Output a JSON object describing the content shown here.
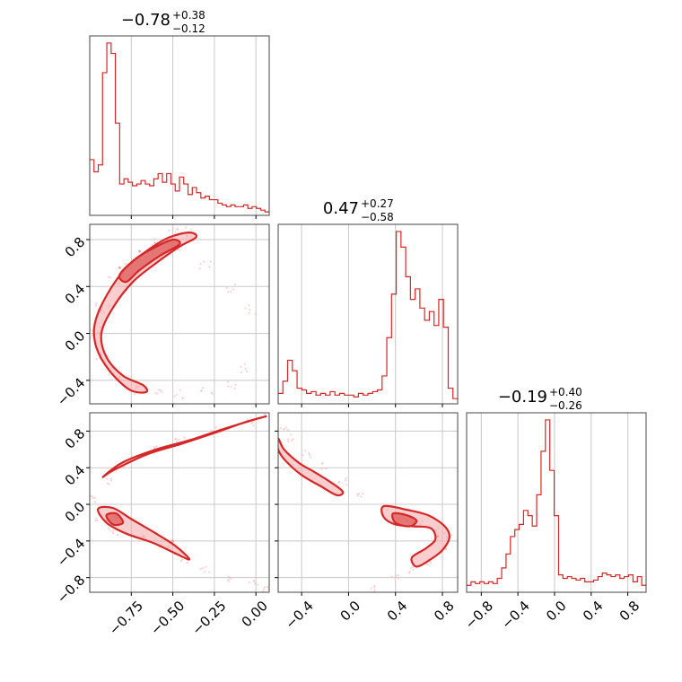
{
  "chart_data": {
    "type": "corner",
    "color": "#d62728",
    "grid": true,
    "titles": [
      {
        "param": 0,
        "median": "−0.78",
        "plus": "+0.38",
        "minus": "−0.12"
      },
      {
        "param": 1,
        "median": "0.47",
        "plus": "+0.27",
        "minus": "−0.58"
      },
      {
        "param": 2,
        "median": "−0.19",
        "plus": "+0.40",
        "minus": "−0.26"
      }
    ],
    "ranges": [
      [
        -1.0,
        0.08
      ],
      [
        -0.6,
        0.93
      ],
      [
        -0.96,
        1.0
      ]
    ],
    "ticks": {
      "x0": [
        {
          "v": -0.75,
          "label": "−0.75"
        },
        {
          "v": -0.5,
          "label": "−0.50"
        },
        {
          "v": -0.25,
          "label": "−0.25"
        },
        {
          "v": 0.0,
          "label": "0.00"
        }
      ],
      "x1": [
        {
          "v": -0.4,
          "label": "−0.4"
        },
        {
          "v": 0.0,
          "label": "0.0"
        },
        {
          "v": 0.4,
          "label": "0.4"
        },
        {
          "v": 0.8,
          "label": "0.8"
        }
      ],
      "x2": [
        {
          "v": -0.8,
          "label": "−0.8"
        },
        {
          "v": -0.4,
          "label": "−0.4"
        },
        {
          "v": 0.0,
          "label": "0.0"
        },
        {
          "v": 0.4,
          "label": "0.4"
        },
        {
          "v": 0.8,
          "label": "0.8"
        }
      ],
      "y1": [
        {
          "v": 0.8,
          "label": "0.8"
        },
        {
          "v": 0.4,
          "label": "0.4"
        },
        {
          "v": 0.0,
          "label": "0.0"
        },
        {
          "v": -0.4,
          "label": "−0.4"
        }
      ],
      "y2": [
        {
          "v": 0.8,
          "label": "0.8"
        },
        {
          "v": 0.4,
          "label": "0.4"
        },
        {
          "v": 0.0,
          "label": "0.0"
        },
        {
          "v": -0.4,
          "label": "−0.4"
        },
        {
          "v": -0.8,
          "label": "−0.8"
        }
      ]
    },
    "hist": [
      {
        "param": 0,
        "ymax": 1.0,
        "values": [
          0.32,
          0.25,
          0.29,
          0.82,
          0.99,
          0.93,
          0.53,
          0.18,
          0.21,
          0.19,
          0.17,
          0.18,
          0.2,
          0.18,
          0.17,
          0.21,
          0.24,
          0.19,
          0.24,
          0.18,
          0.14,
          0.22,
          0.18,
          0.12,
          0.16,
          0.13,
          0.1,
          0.11,
          0.09,
          0.09,
          0.07,
          0.06,
          0.05,
          0.06,
          0.05,
          0.05,
          0.06,
          0.04,
          0.05,
          0.04,
          0.03,
          0.02
        ]
      },
      {
        "param": 1,
        "ymax": 1.0,
        "values": [
          0.06,
          0.13,
          0.25,
          0.19,
          0.09,
          0.08,
          0.06,
          0.07,
          0.05,
          0.06,
          0.05,
          0.07,
          0.05,
          0.06,
          0.05,
          0.05,
          0.04,
          0.06,
          0.05,
          0.06,
          0.07,
          0.08,
          0.16,
          0.38,
          0.63,
          0.99,
          0.9,
          0.73,
          0.6,
          0.66,
          0.55,
          0.48,
          0.53,
          0.45,
          0.6,
          0.44,
          0.09,
          0.03
        ]
      },
      {
        "param": 2,
        "ymax": 1.0,
        "values": [
          0.04,
          0.06,
          0.05,
          0.06,
          0.05,
          0.06,
          0.05,
          0.08,
          0.14,
          0.22,
          0.32,
          0.36,
          0.39,
          0.47,
          0.44,
          0.38,
          0.56,
          0.81,
          0.99,
          0.7,
          0.44,
          0.1,
          0.08,
          0.09,
          0.08,
          0.07,
          0.08,
          0.06,
          0.06,
          0.07,
          0.09,
          0.11,
          0.1,
          0.09,
          0.1,
          0.08,
          0.09,
          0.1,
          0.06,
          0.09,
          0.04
        ]
      }
    ],
    "scatter": [
      {
        "xparam": 0,
        "yparam": 1,
        "outer": [
          [
            -0.97,
            0.02
          ],
          [
            -0.93,
            0.22
          ],
          [
            -0.85,
            0.45
          ],
          [
            -0.75,
            0.62
          ],
          [
            -0.6,
            0.78
          ],
          [
            -0.5,
            0.86
          ],
          [
            -0.4,
            0.87
          ],
          [
            -0.38,
            0.8
          ],
          [
            -0.5,
            0.74
          ],
          [
            -0.66,
            0.6
          ],
          [
            -0.8,
            0.44
          ],
          [
            -0.92,
            0.22
          ],
          [
            -0.96,
            0.0
          ],
          [
            -0.93,
            -0.2
          ],
          [
            -0.85,
            -0.38
          ],
          [
            -0.72,
            -0.48
          ],
          [
            -0.6,
            -0.5
          ],
          [
            -0.45,
            -0.52
          ],
          [
            -0.3,
            -0.5
          ],
          [
            -0.15,
            -0.44
          ],
          [
            -0.05,
            -0.3
          ],
          [
            -0.03,
            0.2
          ],
          [
            -0.15,
            0.38
          ],
          [
            -0.3,
            0.58
          ]
        ],
        "core": [
          [
            -0.82,
            0.56
          ],
          [
            -0.7,
            0.7
          ],
          [
            -0.6,
            0.76
          ],
          [
            -0.5,
            0.8
          ],
          [
            -0.62,
            0.68
          ],
          [
            -0.74,
            0.6
          ]
        ]
      },
      {
        "xparam": 0,
        "yparam": 2,
        "outer": [
          [
            -0.96,
            0.05
          ],
          [
            -0.9,
            0.25
          ],
          [
            -0.8,
            0.42
          ],
          [
            -0.62,
            0.6
          ],
          [
            -0.45,
            0.7
          ],
          [
            -0.25,
            0.82
          ],
          [
            -0.05,
            0.9
          ],
          [
            0.05,
            0.98
          ],
          [
            -0.95,
            -0.15
          ],
          [
            -0.85,
            -0.3
          ],
          [
            -0.7,
            -0.38
          ],
          [
            -0.55,
            -0.48
          ],
          [
            -0.42,
            -0.6
          ],
          [
            -0.3,
            -0.72
          ],
          [
            -0.15,
            -0.8
          ],
          [
            -0.02,
            -0.86
          ],
          [
            0.05,
            -0.92
          ]
        ],
        "core": [
          [
            -0.9,
            -0.18
          ],
          [
            -0.85,
            -0.12
          ],
          [
            -0.8,
            -0.2
          ],
          [
            -0.6,
            -0.32
          ],
          [
            -0.5,
            -0.4
          ]
        ]
      },
      {
        "xparam": 1,
        "yparam": 2,
        "outer": [
          [
            -0.55,
            0.8
          ],
          [
            -0.5,
            0.72
          ],
          [
            -0.35,
            0.55
          ],
          [
            -0.2,
            0.42
          ],
          [
            -0.05,
            0.25
          ],
          [
            0.1,
            0.1
          ],
          [
            0.3,
            -0.05
          ],
          [
            0.45,
            -0.12
          ],
          [
            0.6,
            -0.2
          ],
          [
            0.75,
            -0.28
          ],
          [
            0.85,
            -0.35
          ],
          [
            0.8,
            -0.5
          ],
          [
            0.7,
            -0.62
          ],
          [
            0.55,
            -0.72
          ],
          [
            0.4,
            -0.8
          ],
          [
            0.2,
            -0.92
          ]
        ],
        "core": [
          [
            0.42,
            -0.15
          ],
          [
            0.5,
            -0.18
          ],
          [
            0.56,
            -0.2
          ],
          [
            0.76,
            -0.35
          ]
        ]
      }
    ],
    "contours": [
      {
        "xparam": 0,
        "yparam": 1,
        "shape": "arc",
        "level": "outer",
        "pts": [
          [
            -0.97,
            0.08
          ],
          [
            -0.9,
            0.32
          ],
          [
            -0.78,
            0.56
          ],
          [
            -0.64,
            0.72
          ],
          [
            -0.52,
            0.82
          ],
          [
            -0.4,
            0.86
          ],
          [
            -0.36,
            0.82
          ],
          [
            -0.46,
            0.74
          ],
          [
            -0.6,
            0.6
          ],
          [
            -0.74,
            0.44
          ],
          [
            -0.86,
            0.22
          ],
          [
            -0.93,
            0.0
          ],
          [
            -0.9,
            -0.2
          ],
          [
            -0.8,
            -0.36
          ],
          [
            -0.68,
            -0.44
          ],
          [
            -0.66,
            -0.5
          ],
          [
            -0.76,
            -0.48
          ],
          [
            -0.88,
            -0.32
          ],
          [
            -0.96,
            -0.12
          ]
        ]
      },
      {
        "xparam": 0,
        "yparam": 1,
        "shape": "arc",
        "level": "inner",
        "pts": [
          [
            -0.82,
            0.5
          ],
          [
            -0.72,
            0.64
          ],
          [
            -0.6,
            0.74
          ],
          [
            -0.5,
            0.8
          ],
          [
            -0.46,
            0.76
          ],
          [
            -0.58,
            0.66
          ],
          [
            -0.7,
            0.54
          ],
          [
            -0.78,
            0.44
          ]
        ]
      },
      {
        "xparam": 0,
        "yparam": 2,
        "shape": "arc",
        "level": "outer",
        "pts": [
          [
            -0.95,
            -0.05
          ],
          [
            -0.9,
            -0.2
          ],
          [
            -0.78,
            -0.32
          ],
          [
            -0.62,
            -0.42
          ],
          [
            -0.48,
            -0.54
          ],
          [
            -0.4,
            -0.6
          ],
          [
            -0.48,
            -0.46
          ],
          [
            -0.6,
            -0.32
          ],
          [
            -0.75,
            -0.16
          ],
          [
            -0.86,
            -0.04
          ]
        ]
      },
      {
        "xparam": 0,
        "yparam": 2,
        "shape": "arc",
        "level": "inner",
        "pts": [
          [
            -0.9,
            -0.12
          ],
          [
            -0.86,
            -0.22
          ],
          [
            -0.8,
            -0.2
          ],
          [
            -0.84,
            -0.1
          ]
        ]
      },
      {
        "xparam": 0,
        "yparam": 2,
        "shape": "arc",
        "level": "outer",
        "pts": [
          [
            -0.92,
            0.3
          ],
          [
            -0.8,
            0.46
          ],
          [
            -0.6,
            0.6
          ],
          [
            -0.4,
            0.7
          ],
          [
            -0.2,
            0.82
          ],
          [
            -0.02,
            0.92
          ],
          [
            0.06,
            0.96
          ],
          [
            -0.06,
            0.9
          ],
          [
            -0.25,
            0.78
          ],
          [
            -0.45,
            0.66
          ],
          [
            -0.65,
            0.55
          ],
          [
            -0.85,
            0.38
          ]
        ]
      },
      {
        "xparam": 1,
        "yparam": 2,
        "shape": "arc",
        "level": "outer",
        "pts": [
          [
            0.3,
            -0.02
          ],
          [
            0.5,
            -0.06
          ],
          [
            0.68,
            -0.12
          ],
          [
            0.82,
            -0.24
          ],
          [
            0.86,
            -0.36
          ],
          [
            0.8,
            -0.5
          ],
          [
            0.7,
            -0.6
          ],
          [
            0.58,
            -0.68
          ],
          [
            0.54,
            -0.58
          ],
          [
            0.66,
            -0.48
          ],
          [
            0.74,
            -0.38
          ],
          [
            0.7,
            -0.26
          ],
          [
            0.55,
            -0.24
          ],
          [
            0.4,
            -0.22
          ],
          [
            0.3,
            -0.14
          ]
        ]
      },
      {
        "xparam": 1,
        "yparam": 2,
        "shape": "arc",
        "level": "inner",
        "pts": [
          [
            0.38,
            -0.1
          ],
          [
            0.5,
            -0.12
          ],
          [
            0.58,
            -0.18
          ],
          [
            0.52,
            -0.24
          ],
          [
            0.4,
            -0.2
          ]
        ]
      },
      {
        "xparam": 1,
        "yparam": 2,
        "shape": "arc",
        "level": "outer",
        "pts": [
          [
            -0.6,
            0.72
          ],
          [
            -0.55,
            0.6
          ],
          [
            -0.42,
            0.45
          ],
          [
            -0.3,
            0.36
          ],
          [
            -0.15,
            0.24
          ],
          [
            -0.05,
            0.14
          ],
          [
            -0.1,
            0.1
          ],
          [
            -0.24,
            0.2
          ],
          [
            -0.4,
            0.32
          ],
          [
            -0.54,
            0.48
          ],
          [
            -0.6,
            0.6
          ]
        ]
      }
    ]
  }
}
